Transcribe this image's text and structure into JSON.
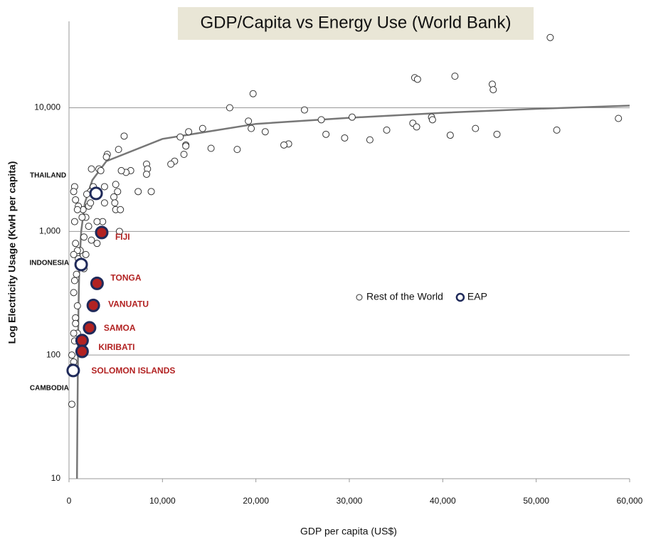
{
  "chart_data": {
    "type": "scatter",
    "title": "GDP/Capita vs Energy Use (World Bank)",
    "x_label": "GDP per capita (US$)",
    "y_label": "Log  Electricity Usage (KwH per capita)",
    "log_y": true,
    "grid": true,
    "xlim": [
      0,
      60000
    ],
    "ylim": [
      10,
      50000
    ],
    "xticks": [
      0,
      {
        "value": 10000,
        "label": "10,000"
      },
      {
        "value": 20000,
        "label": "20,000"
      },
      {
        "value": 30000,
        "label": "30,000"
      },
      {
        "value": 40000,
        "label": "40,000"
      },
      {
        "value": 50000,
        "label": "50,000"
      },
      {
        "value": 60000,
        "label": "60,000"
      }
    ],
    "yticks": [
      10,
      100,
      {
        "value": 1000,
        "label": "1,000"
      },
      {
        "value": 10000,
        "label": "10,000"
      }
    ],
    "series": [
      {
        "name": "Rest of the World",
        "color": "#ffffff",
        "stroke": "#333333",
        "x": [
          51500,
          37000,
          37300,
          41300,
          45300,
          45400,
          19700,
          17200,
          25200,
          58800,
          52200,
          38800,
          38900,
          36800,
          37200,
          30300,
          27000,
          34000,
          43500,
          40800,
          45800,
          29500,
          32200,
          27500,
          23500,
          23000,
          21000,
          19500,
          19200,
          18000,
          15200,
          14300,
          12800,
          12500,
          12500,
          11900,
          12300,
          11300,
          10900,
          8300,
          8400,
          8300,
          8800,
          7400,
          6600,
          6100,
          5600,
          5300,
          5900,
          5200,
          5000,
          4800,
          4900,
          5000,
          5500,
          5400,
          4100,
          4000,
          3800,
          3800,
          3600,
          3200,
          3400,
          2400,
          2600,
          2300,
          2100,
          2300,
          2100,
          2400,
          3000,
          3000,
          1900,
          1800,
          1400,
          1500,
          1600,
          1200,
          1000,
          600,
          500,
          700,
          1000,
          900,
          600,
          700,
          900,
          500,
          800,
          600,
          900,
          500,
          700,
          700,
          900,
          500,
          600,
          300,
          500,
          300,
          300,
          1600,
          1800
        ],
        "values": [
          37000,
          17500,
          17000,
          18000,
          15500,
          14000,
          13000,
          10000,
          9600,
          8200,
          6600,
          8400,
          8000,
          7500,
          7000,
          8400,
          8000,
          6600,
          6800,
          6000,
          6100,
          5700,
          5500,
          6100,
          5100,
          5000,
          6400,
          6800,
          7800,
          4600,
          4700,
          6800,
          6400,
          5000,
          4900,
          5800,
          4200,
          3700,
          3500,
          3500,
          3200,
          2900,
          2100,
          2100,
          3100,
          3000,
          3100,
          4600,
          5900,
          2100,
          2400,
          1900,
          1700,
          1500,
          1500,
          1000,
          4200,
          4000,
          2300,
          1700,
          1200,
          3200,
          3100,
          3200,
          2300,
          2100,
          1600,
          1700,
          1100,
          850,
          800,
          1200,
          2000,
          1300,
          1300,
          1500,
          900,
          700,
          600,
          2300,
          2100,
          1800,
          1600,
          1500,
          1200,
          800,
          700,
          650,
          450,
          400,
          250,
          320,
          200,
          180,
          150,
          150,
          130,
          100,
          88,
          80,
          40,
          500,
          650
        ]
      },
      {
        "name": "EAP",
        "color": "#ffffff",
        "stroke": "#1f2a5a",
        "x": [
          2900,
          3500,
          1300,
          3000,
          2600,
          2200,
          1400,
          1400,
          450
        ],
        "values": [
          2030,
          980,
          540,
          380,
          252,
          166,
          131,
          107,
          75
        ],
        "labels": [
          "THAILAND",
          "FIJI",
          "INDONESIA",
          "TONGA",
          "VANUATU",
          "SAMOA",
          "KIRIBATI",
          "SOLOMON ISLANDS",
          "CAMBODIA"
        ],
        "point_colors": [
          "#ffffff",
          "#b22222",
          "#ffffff",
          "#b22222",
          "#b22222",
          "#b22222",
          "#b22222",
          "#b22222",
          "#ffffff"
        ],
        "label_colors": [
          "#111111",
          "#b22222",
          "#111111",
          "#b22222",
          "#b22222",
          "#b22222",
          "#b22222",
          "#b22222",
          "#111111"
        ]
      }
    ],
    "trendline": {
      "color": "#777777",
      "x": [
        850,
        900,
        1000,
        1100,
        1300,
        1700,
        2500,
        4000,
        10000,
        20000,
        30000,
        40000,
        50000,
        60000
      ],
      "values": [
        10,
        30,
        200,
        500,
        1000,
        1700,
        2600,
        3700,
        5600,
        7400,
        8300,
        9100,
        9800,
        10400
      ]
    }
  }
}
